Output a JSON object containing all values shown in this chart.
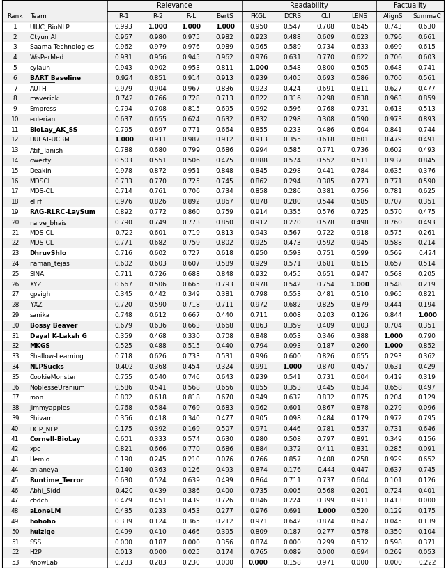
{
  "rows": [
    [
      1,
      "UIUC_BioNLP",
      "0.993",
      "1.000",
      "1.000",
      "1.000",
      "0.950",
      "0.547",
      "0.708",
      "0.645",
      "0.743",
      "0.630"
    ],
    [
      2,
      "Ctyun AI",
      "0.967",
      "0.980",
      "0.975",
      "0.982",
      "0.923",
      "0.488",
      "0.609",
      "0.623",
      "0.796",
      "0.661"
    ],
    [
      3,
      "Saama Technologies",
      "0.962",
      "0.979",
      "0.976",
      "0.989",
      "0.965",
      "0.589",
      "0.734",
      "0.633",
      "0.699",
      "0.615"
    ],
    [
      4,
      "WisPerMed",
      "0.931",
      "0.956",
      "0.945",
      "0.962",
      "0.976",
      "0.631",
      "0.770",
      "0.622",
      "0.706",
      "0.603"
    ],
    [
      5,
      "cylaun",
      "0.943",
      "0.902",
      "0.953",
      "0.811",
      "1.000",
      "0.548",
      "0.800",
      "0.505",
      "0.648",
      "0.741"
    ],
    [
      6,
      "BART Baseline",
      "0.924",
      "0.851",
      "0.914",
      "0.913",
      "0.939",
      "0.405",
      "0.693",
      "0.586",
      "0.700",
      "0.561"
    ],
    [
      7,
      "AUTH",
      "0.979",
      "0.904",
      "0.967",
      "0.836",
      "0.923",
      "0.424",
      "0.691",
      "0.811",
      "0.627",
      "0.477"
    ],
    [
      8,
      "maverick",
      "0.742",
      "0.766",
      "0.728",
      "0.713",
      "0.822",
      "0.316",
      "0.298",
      "0.638",
      "0.963",
      "0.859"
    ],
    [
      9,
      "Empress",
      "0.794",
      "0.708",
      "0.815",
      "0.695",
      "0.992",
      "0.596",
      "0.768",
      "0.731",
      "0.613",
      "0.513"
    ],
    [
      10,
      "eulerian",
      "0.637",
      "0.655",
      "0.624",
      "0.632",
      "0.832",
      "0.298",
      "0.308",
      "0.590",
      "0.973",
      "0.893"
    ],
    [
      11,
      "BioLay_AK_SS",
      "0.795",
      "0.697",
      "0.771",
      "0.664",
      "0.855",
      "0.233",
      "0.486",
      "0.604",
      "0.841",
      "0.744"
    ],
    [
      12,
      "HULAT-UC3M",
      "1.000",
      "0.911",
      "0.987",
      "0.912",
      "0.913",
      "0.355",
      "0.618",
      "0.601",
      "0.479",
      "0.491"
    ],
    [
      13,
      "Atif_Tanish",
      "0.788",
      "0.680",
      "0.799",
      "0.686",
      "0.994",
      "0.585",
      "0.771",
      "0.736",
      "0.602",
      "0.493"
    ],
    [
      14,
      "qwerty",
      "0.503",
      "0.551",
      "0.506",
      "0.475",
      "0.888",
      "0.574",
      "0.552",
      "0.511",
      "0.937",
      "0.845"
    ],
    [
      15,
      "Deakin",
      "0.978",
      "0.872",
      "0.951",
      "0.848",
      "0.845",
      "0.298",
      "0.441",
      "0.784",
      "0.635",
      "0.376"
    ],
    [
      16,
      "MDSCL",
      "0.733",
      "0.770",
      "0.725",
      "0.745",
      "0.862",
      "0.294",
      "0.385",
      "0.773",
      "0.771",
      "0.590"
    ],
    [
      17,
      "MDS-CL",
      "0.714",
      "0.761",
      "0.706",
      "0.734",
      "0.858",
      "0.286",
      "0.381",
      "0.756",
      "0.781",
      "0.625"
    ],
    [
      18,
      "elirf",
      "0.976",
      "0.826",
      "0.892",
      "0.867",
      "0.878",
      "0.280",
      "0.544",
      "0.585",
      "0.707",
      "0.351"
    ],
    [
      19,
      "RAG-RLRC-LaySum",
      "0.892",
      "0.772",
      "0.860",
      "0.759",
      "0.914",
      "0.355",
      "0.576",
      "0.725",
      "0.570",
      "0.475"
    ],
    [
      20,
      "naive_bhais",
      "0.790",
      "0.749",
      "0.773",
      "0.850",
      "0.912",
      "0.270",
      "0.578",
      "0.498",
      "0.760",
      "0.493"
    ],
    [
      21,
      "MDS-CL",
      "0.722",
      "0.601",
      "0.719",
      "0.813",
      "0.943",
      "0.567",
      "0.722",
      "0.918",
      "0.575",
      "0.261"
    ],
    [
      22,
      "MDS-CL",
      "0.771",
      "0.682",
      "0.759",
      "0.802",
      "0.925",
      "0.473",
      "0.592",
      "0.945",
      "0.588",
      "0.214"
    ],
    [
      23,
      "DhruvShlo",
      "0.716",
      "0.602",
      "0.727",
      "0.618",
      "0.950",
      "0.593",
      "0.751",
      "0.599",
      "0.569",
      "0.424"
    ],
    [
      24,
      "naman_tejas",
      "0.602",
      "0.603",
      "0.607",
      "0.589",
      "0.929",
      "0.571",
      "0.681",
      "0.615",
      "0.657",
      "0.514"
    ],
    [
      25,
      "SINAI",
      "0.711",
      "0.726",
      "0.688",
      "0.848",
      "0.932",
      "0.455",
      "0.651",
      "0.947",
      "0.568",
      "0.205"
    ],
    [
      26,
      "XYZ",
      "0.667",
      "0.506",
      "0.665",
      "0.793",
      "0.978",
      "0.542",
      "0.754",
      "1.000",
      "0.548",
      "0.219"
    ],
    [
      27,
      "gpsigh",
      "0.345",
      "0.442",
      "0.349",
      "0.381",
      "0.798",
      "0.553",
      "0.481",
      "0.510",
      "0.965",
      "0.821"
    ],
    [
      28,
      "YXZ",
      "0.720",
      "0.590",
      "0.718",
      "0.711",
      "0.972",
      "0.682",
      "0.825",
      "0.879",
      "0.444",
      "0.194"
    ],
    [
      29,
      "sanika",
      "0.748",
      "0.612",
      "0.667",
      "0.440",
      "0.711",
      "0.008",
      "0.203",
      "0.126",
      "0.844",
      "1.000"
    ],
    [
      30,
      "Bossy Beaver",
      "0.679",
      "0.636",
      "0.663",
      "0.668",
      "0.863",
      "0.359",
      "0.409",
      "0.803",
      "0.704",
      "0.351"
    ],
    [
      31,
      "Dayal K-Laksh G",
      "0.359",
      "0.468",
      "0.330",
      "0.708",
      "0.848",
      "0.053",
      "0.346",
      "0.388",
      "1.000",
      "0.790"
    ],
    [
      32,
      "MKGS",
      "0.525",
      "0.488",
      "0.515",
      "0.440",
      "0.794",
      "0.093",
      "0.187",
      "0.260",
      "1.000",
      "0.852"
    ],
    [
      33,
      "Shallow-Learning",
      "0.718",
      "0.626",
      "0.733",
      "0.531",
      "0.996",
      "0.600",
      "0.826",
      "0.655",
      "0.293",
      "0.362"
    ],
    [
      34,
      "NLPSucks",
      "0.402",
      "0.368",
      "0.454",
      "0.324",
      "0.991",
      "1.000",
      "0.870",
      "0.457",
      "0.631",
      "0.429"
    ],
    [
      35,
      "CookieMonster",
      "0.755",
      "0.540",
      "0.746",
      "0.643",
      "0.939",
      "0.541",
      "0.731",
      "0.604",
      "0.419",
      "0.319"
    ],
    [
      36,
      "NoblesseUranium",
      "0.586",
      "0.541",
      "0.568",
      "0.656",
      "0.855",
      "0.353",
      "0.445",
      "0.634",
      "0.658",
      "0.497"
    ],
    [
      37,
      "roon",
      "0.802",
      "0.618",
      "0.818",
      "0.670",
      "0.949",
      "0.632",
      "0.832",
      "0.875",
      "0.204",
      "0.129"
    ],
    [
      38,
      "jimmyapples",
      "0.768",
      "0.584",
      "0.769",
      "0.683",
      "0.962",
      "0.601",
      "0.867",
      "0.878",
      "0.279",
      "0.096"
    ],
    [
      39,
      "Shivam",
      "0.356",
      "0.418",
      "0.340",
      "0.477",
      "0.905",
      "0.098",
      "0.484",
      "0.179",
      "0.972",
      "0.795"
    ],
    [
      40,
      "HGP_NLP",
      "0.175",
      "0.392",
      "0.169",
      "0.507",
      "0.971",
      "0.446",
      "0.781",
      "0.537",
      "0.731",
      "0.646"
    ],
    [
      41,
      "Cornell-BioLay",
      "0.601",
      "0.333",
      "0.574",
      "0.630",
      "0.980",
      "0.508",
      "0.797",
      "0.891",
      "0.349",
      "0.156"
    ],
    [
      42,
      "xpc",
      "0.821",
      "0.666",
      "0.770",
      "0.686",
      "0.884",
      "0.372",
      "0.411",
      "0.831",
      "0.285",
      "0.091"
    ],
    [
      43,
      "Hemlo",
      "0.190",
      "0.245",
      "0.210",
      "0.076",
      "0.766",
      "0.857",
      "0.408",
      "0.258",
      "0.929",
      "0.652"
    ],
    [
      44,
      "anjaneya",
      "0.140",
      "0.363",
      "0.126",
      "0.493",
      "0.874",
      "0.176",
      "0.444",
      "0.447",
      "0.637",
      "0.745"
    ],
    [
      45,
      "Runtime_Terror",
      "0.630",
      "0.524",
      "0.639",
      "0.499",
      "0.864",
      "0.711",
      "0.737",
      "0.604",
      "0.101",
      "0.126"
    ],
    [
      46,
      "Abhi_Sidd",
      "0.420",
      "0.439",
      "0.386",
      "0.400",
      "0.735",
      "0.005",
      "0.568",
      "0.201",
      "0.724",
      "0.401"
    ],
    [
      47,
      "cbdch",
      "0.479",
      "0.451",
      "0.439",
      "0.726",
      "0.846",
      "0.224",
      "0.399",
      "0.911",
      "0.413",
      "0.000"
    ],
    [
      48,
      "aLoneLM",
      "0.435",
      "0.233",
      "0.453",
      "0.277",
      "0.976",
      "0.691",
      "1.000",
      "0.520",
      "0.129",
      "0.175"
    ],
    [
      49,
      "hohoho",
      "0.339",
      "0.124",
      "0.365",
      "0.212",
      "0.971",
      "0.642",
      "0.874",
      "0.647",
      "0.045",
      "0.139"
    ],
    [
      50,
      "huizige",
      "0.499",
      "0.410",
      "0.466",
      "0.395",
      "0.809",
      "0.187",
      "0.277",
      "0.578",
      "0.350",
      "0.104"
    ],
    [
      51,
      "SSS",
      "0.000",
      "0.187",
      "0.000",
      "0.356",
      "0.874",
      "0.000",
      "0.299",
      "0.532",
      "0.598",
      "0.371"
    ],
    [
      52,
      "H2P",
      "0.013",
      "0.000",
      "0.025",
      "0.174",
      "0.765",
      "0.089",
      "0.000",
      "0.694",
      "0.269",
      "0.053"
    ],
    [
      53,
      "KnowLab",
      "0.283",
      "0.283",
      "0.230",
      "0.000",
      "0.000",
      "0.158",
      "0.971",
      "0.000",
      "0.000",
      "0.222"
    ]
  ],
  "bold_teams": [
    6,
    11,
    19,
    23,
    30,
    31,
    32,
    34,
    41,
    45,
    48,
    49,
    50
  ],
  "underline_teams": [
    6
  ],
  "bold_values": {
    "1": [
      3,
      4,
      5
    ],
    "5": [
      6
    ],
    "12": [
      2
    ],
    "26": [
      9
    ],
    "29": [
      11
    ],
    "31": [
      10
    ],
    "32": [
      10
    ],
    "34": [
      7
    ],
    "48": [
      8
    ],
    "53": [
      6
    ]
  },
  "col_headers": [
    "Rank",
    "Team",
    "R-1",
    "R-2",
    "R-L",
    "BertS",
    "FKGL",
    "DCRS",
    "CLI",
    "LENS",
    "AlignS",
    "SummaC"
  ],
  "group_headers": [
    "Relevance",
    "Readability",
    "Factuality"
  ],
  "figsize": [
    6.4,
    8.15
  ]
}
